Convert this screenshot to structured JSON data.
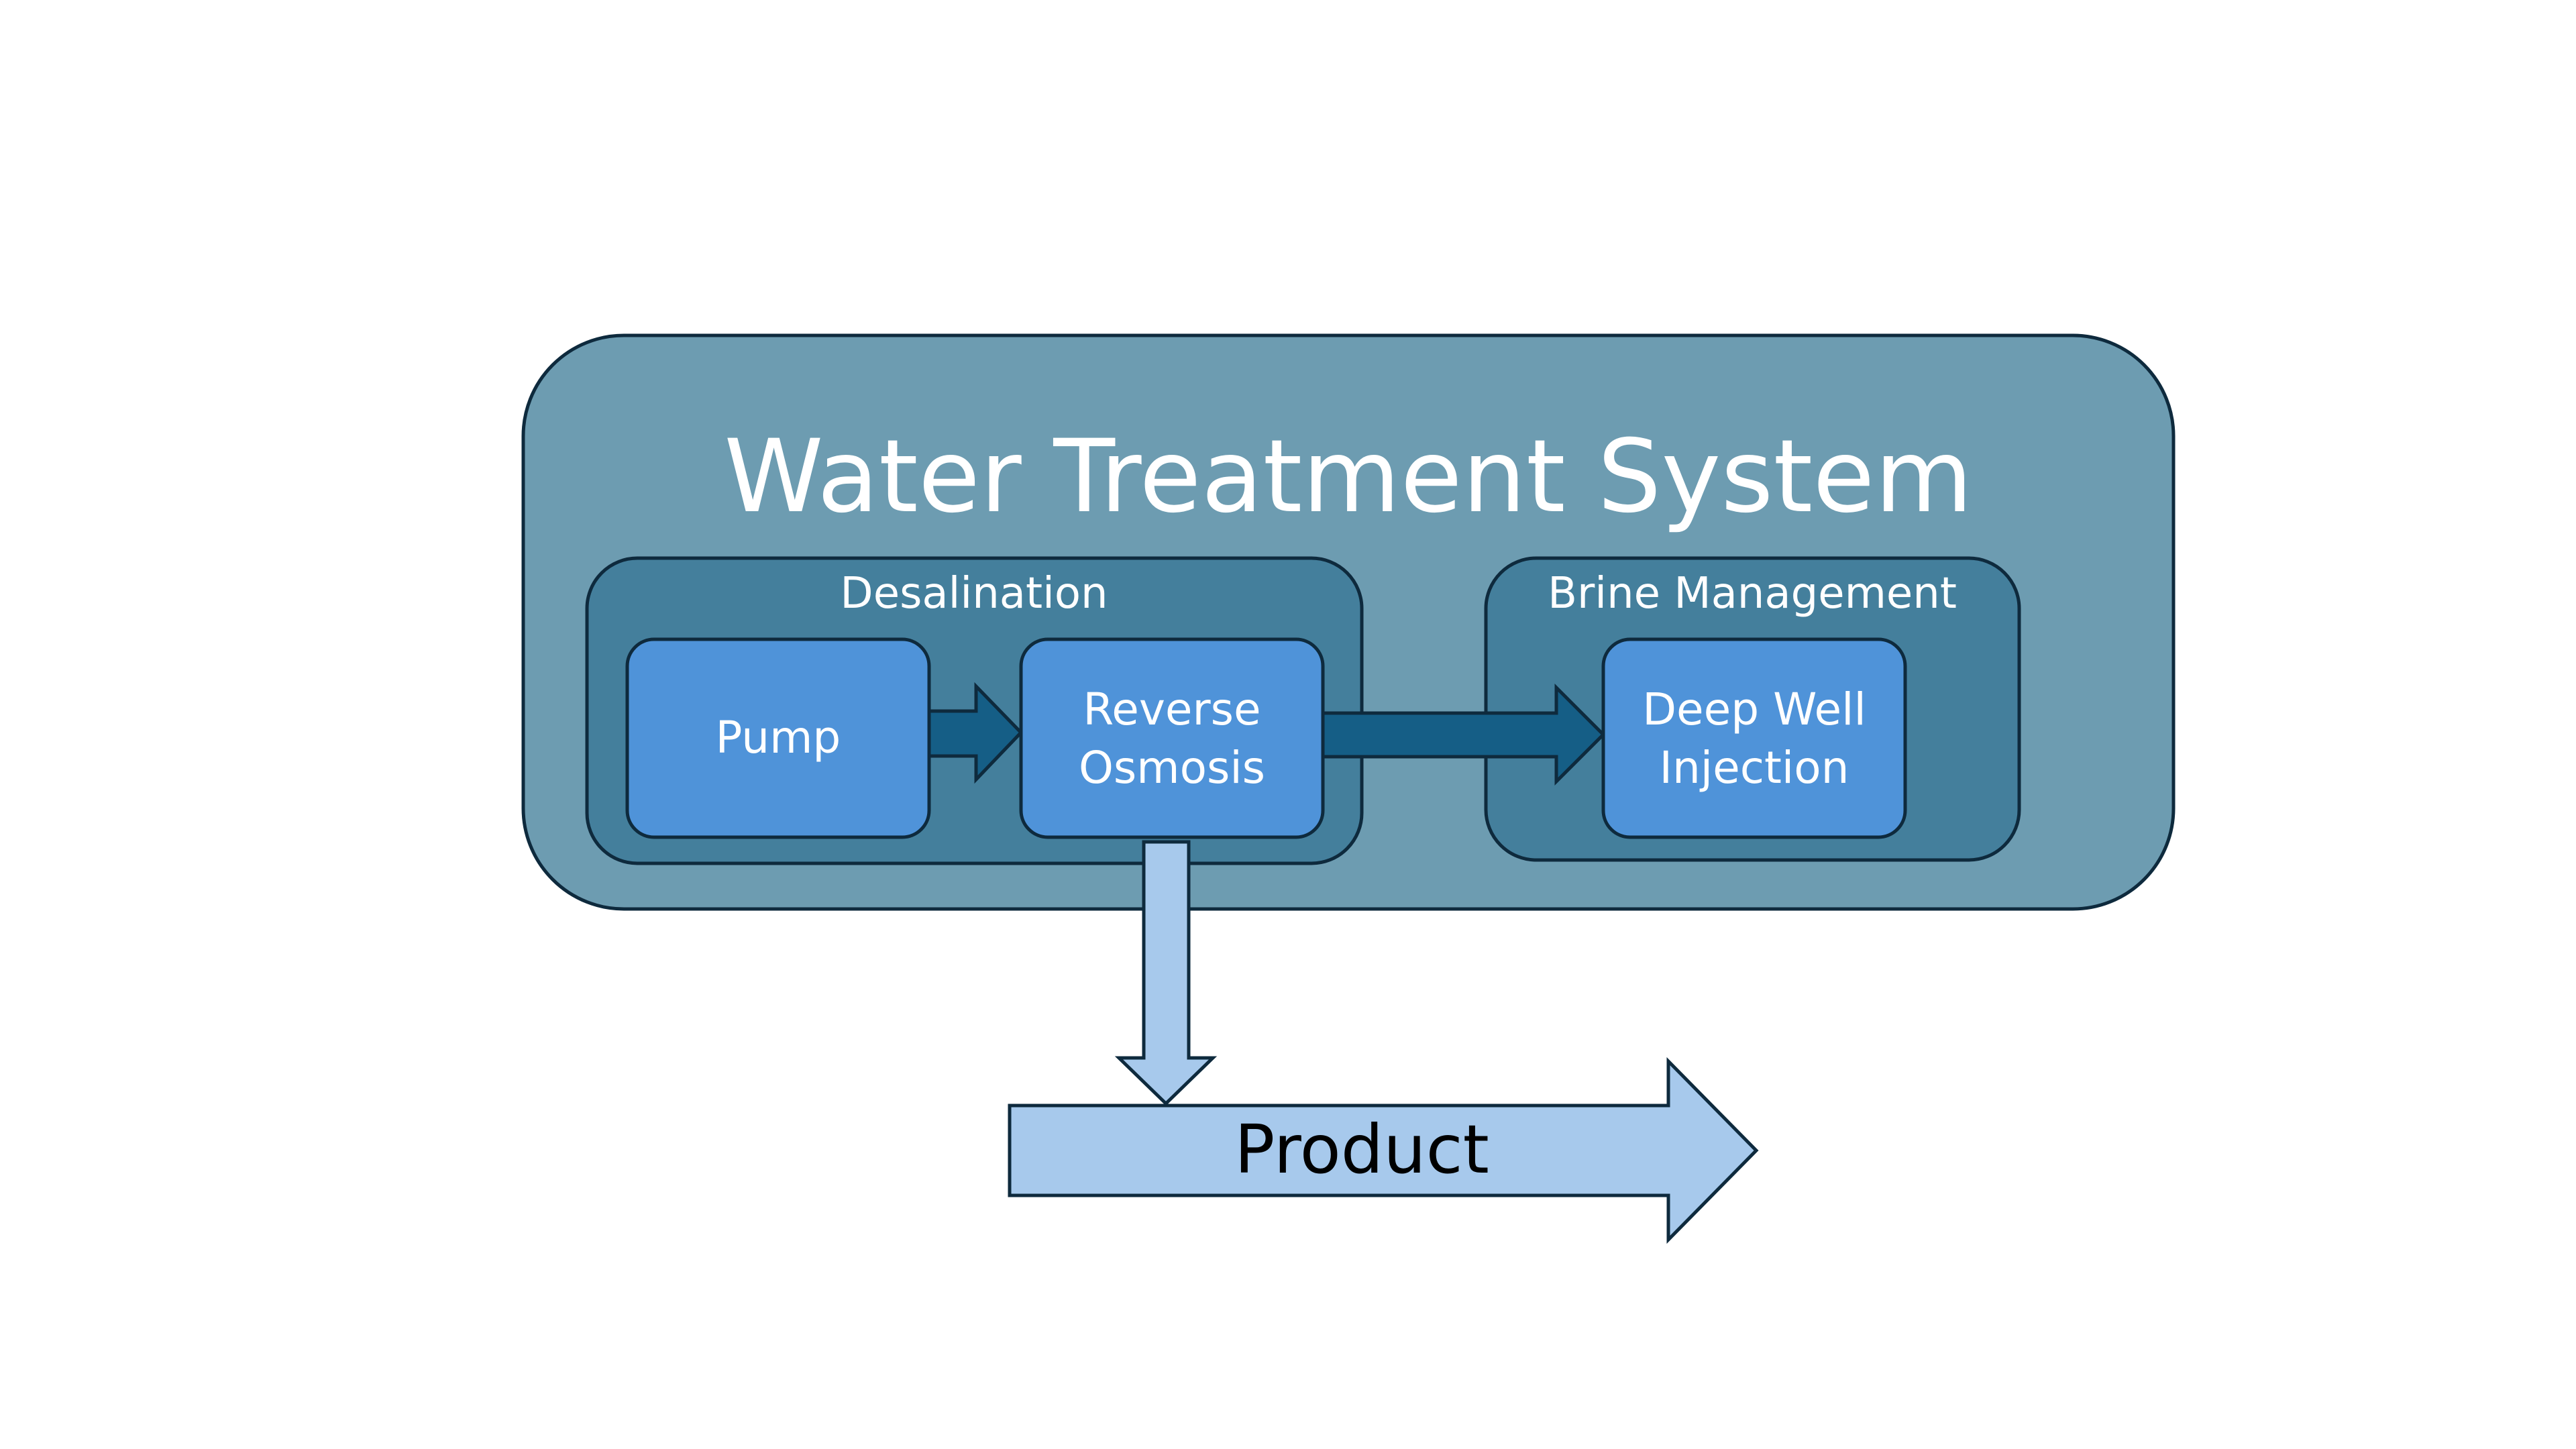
{
  "diagram": {
    "title": "Water Treatment System",
    "groups": {
      "desalination": {
        "label": "Desalination"
      },
      "brine_management": {
        "label": "Brine Management"
      }
    },
    "nodes": {
      "pump": {
        "line1": "Pump"
      },
      "reverse_osmosis": {
        "line1": "Reverse",
        "line2": "Osmosis"
      },
      "deep_well_injection": {
        "line1": "Deep Well",
        "line2": "Injection"
      }
    },
    "output": {
      "label": "Product"
    },
    "colors": {
      "system_fill": "#6d9cb1",
      "group_fill": "#447f9c",
      "node_fill": "#4f93d9",
      "flow_arrow": "#155e86",
      "product_arrow": "#a7c9ec",
      "outline": "#0e2a3d"
    }
  }
}
